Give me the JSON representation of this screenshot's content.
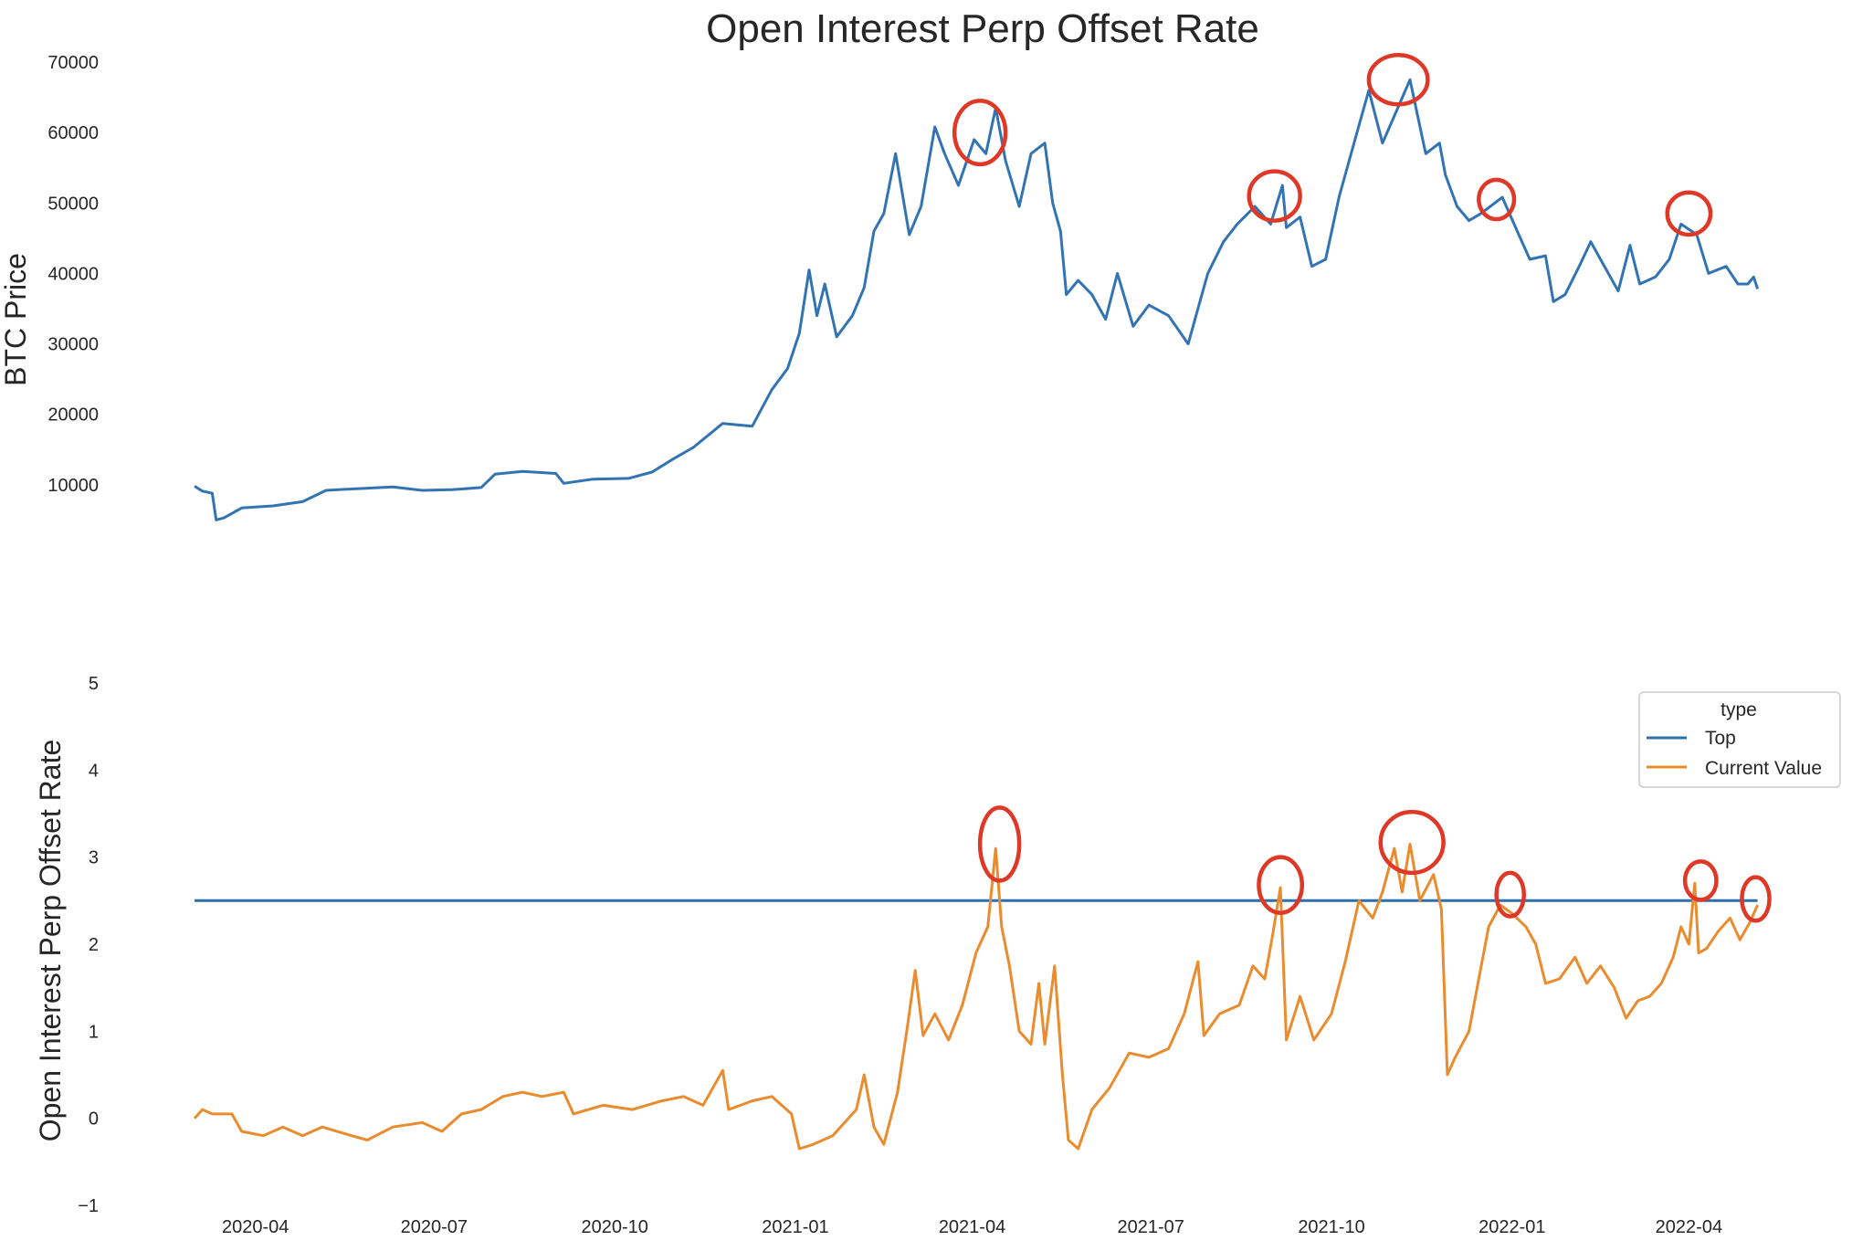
{
  "title": "Open Interest Perp Offset Rate",
  "colors": {
    "price": "#3274b3",
    "top": "#2f6fab",
    "current": "#ea8c2d",
    "highlight": "#e03826"
  },
  "legend": {
    "title": "type",
    "items": [
      "Top",
      "Current Value"
    ],
    "placement": "right"
  },
  "chart_data": [
    {
      "type": "line",
      "ylabel": "BTC  Price",
      "yticks": [
        10000,
        20000,
        30000,
        40000,
        50000,
        60000,
        70000
      ],
      "ylim": [
        0,
        70000
      ],
      "xlim": [
        "2020-03-01",
        "2022-05-15"
      ],
      "series": [
        {
          "color_key": "price",
          "points": [
            [
              "2020-03-01",
              9800
            ],
            [
              "2020-03-05",
              9100
            ],
            [
              "2020-03-10",
              8800
            ],
            [
              "2020-03-12",
              5000
            ],
            [
              "2020-03-16",
              5300
            ],
            [
              "2020-03-25",
              6700
            ],
            [
              "2020-04-10",
              7000
            ],
            [
              "2020-04-25",
              7600
            ],
            [
              "2020-05-07",
              9200
            ],
            [
              "2020-05-20",
              9400
            ],
            [
              "2020-06-10",
              9700
            ],
            [
              "2020-06-25",
              9200
            ],
            [
              "2020-07-10",
              9300
            ],
            [
              "2020-07-25",
              9600
            ],
            [
              "2020-08-01",
              11500
            ],
            [
              "2020-08-15",
              11900
            ],
            [
              "2020-09-01",
              11600
            ],
            [
              "2020-09-05",
              10200
            ],
            [
              "2020-09-20",
              10800
            ],
            [
              "2020-10-08",
              10900
            ],
            [
              "2020-10-20",
              11800
            ],
            [
              "2020-10-31",
              13700
            ],
            [
              "2020-11-10",
              15300
            ],
            [
              "2020-11-25",
              18700
            ],
            [
              "2020-12-10",
              18300
            ],
            [
              "2020-12-20",
              23500
            ],
            [
              "2020-12-28",
              26500
            ],
            [
              "2021-01-03",
              31500
            ],
            [
              "2021-01-08",
              40500
            ],
            [
              "2021-01-12",
              34000
            ],
            [
              "2021-01-16",
              38500
            ],
            [
              "2021-01-22",
              31000
            ],
            [
              "2021-01-30",
              34000
            ],
            [
              "2021-02-05",
              38000
            ],
            [
              "2021-02-10",
              46000
            ],
            [
              "2021-02-15",
              48500
            ],
            [
              "2021-02-21",
              57000
            ],
            [
              "2021-02-28",
              45500
            ],
            [
              "2021-03-06",
              49500
            ],
            [
              "2021-03-13",
              60800
            ],
            [
              "2021-03-18",
              57000
            ],
            [
              "2021-03-25",
              52500
            ],
            [
              "2021-04-02",
              59000
            ],
            [
              "2021-04-08",
              57000
            ],
            [
              "2021-04-13",
              63500
            ],
            [
              "2021-04-18",
              56000
            ],
            [
              "2021-04-25",
              49500
            ],
            [
              "2021-05-01",
              57000
            ],
            [
              "2021-05-08",
              58500
            ],
            [
              "2021-05-12",
              50000
            ],
            [
              "2021-05-16",
              46000
            ],
            [
              "2021-05-19",
              37000
            ],
            [
              "2021-05-25",
              39000
            ],
            [
              "2021-06-01",
              37000
            ],
            [
              "2021-06-08",
              33500
            ],
            [
              "2021-06-14",
              40000
            ],
            [
              "2021-06-22",
              32500
            ],
            [
              "2021-06-30",
              35500
            ],
            [
              "2021-07-10",
              34000
            ],
            [
              "2021-07-20",
              30000
            ],
            [
              "2021-07-25",
              35000
            ],
            [
              "2021-07-30",
              40000
            ],
            [
              "2021-08-07",
              44500
            ],
            [
              "2021-08-14",
              47000
            ],
            [
              "2021-08-23",
              49500
            ],
            [
              "2021-08-31",
              47000
            ],
            [
              "2021-09-06",
              52500
            ],
            [
              "2021-09-08",
              46500
            ],
            [
              "2021-09-15",
              48000
            ],
            [
              "2021-09-21",
              41000
            ],
            [
              "2021-09-28",
              42000
            ],
            [
              "2021-10-05",
              51000
            ],
            [
              "2021-10-15",
              61000
            ],
            [
              "2021-10-20",
              66000
            ],
            [
              "2021-10-27",
              58500
            ],
            [
              "2021-11-03",
              63000
            ],
            [
              "2021-11-10",
              67500
            ],
            [
              "2021-11-18",
              57000
            ],
            [
              "2021-11-25",
              58500
            ],
            [
              "2021-11-28",
              54000
            ],
            [
              "2021-12-04",
              49500
            ],
            [
              "2021-12-10",
              47500
            ],
            [
              "2021-12-16",
              48500
            ],
            [
              "2021-12-27",
              50800
            ],
            [
              "2022-01-02",
              47000
            ],
            [
              "2022-01-10",
              42000
            ],
            [
              "2022-01-18",
              42500
            ],
            [
              "2022-01-22",
              36000
            ],
            [
              "2022-01-28",
              37000
            ],
            [
              "2022-02-05",
              41500
            ],
            [
              "2022-02-10",
              44500
            ],
            [
              "2022-02-15",
              42000
            ],
            [
              "2022-02-24",
              37500
            ],
            [
              "2022-03-02",
              44000
            ],
            [
              "2022-03-07",
              38500
            ],
            [
              "2022-03-15",
              39500
            ],
            [
              "2022-03-22",
              42000
            ],
            [
              "2022-03-28",
              47000
            ],
            [
              "2022-04-05",
              45500
            ],
            [
              "2022-04-11",
              40000
            ],
            [
              "2022-04-20",
              41000
            ],
            [
              "2022-04-26",
              38500
            ],
            [
              "2022-05-01",
              38500
            ],
            [
              "2022-05-04",
              39500
            ],
            [
              "2022-05-06",
              37800
            ]
          ]
        }
      ],
      "highlights": [
        {
          "x": "2021-04-05",
          "y": 60000,
          "rx_days": 13,
          "ry_value": 4500
        },
        {
          "x": "2021-09-02",
          "y": 51000,
          "rx_days": 13,
          "ry_value": 3500
        },
        {
          "x": "2021-11-04",
          "y": 67500,
          "rx_days": 15,
          "ry_value": 3500
        },
        {
          "x": "2021-12-24",
          "y": 50500,
          "rx_days": 9,
          "ry_value": 2800
        },
        {
          "x": "2022-04-01",
          "y": 48500,
          "rx_days": 11,
          "ry_value": 3000
        }
      ]
    },
    {
      "type": "line",
      "ylabel": "Open Interest Perp Offset Rate",
      "yticks": [
        -1,
        0,
        1,
        2,
        3,
        4,
        5
      ],
      "ylim": [
        -1,
        5
      ],
      "xlim": [
        "2020-03-01",
        "2022-05-15"
      ],
      "xticks": [
        "2020-04",
        "2020-07",
        "2020-10",
        "2021-01",
        "2021-04",
        "2021-07",
        "2021-10",
        "2022-01",
        "2022-04"
      ],
      "series": [
        {
          "name": "Top",
          "color_key": "top",
          "points": [
            [
              "2020-03-01",
              2.5
            ],
            [
              "2022-05-06",
              2.5
            ]
          ]
        },
        {
          "name": "Current Value",
          "color_key": "current",
          "points": [
            [
              "2020-03-01",
              0.0
            ],
            [
              "2020-03-05",
              0.1
            ],
            [
              "2020-03-10",
              0.05
            ],
            [
              "2020-03-20",
              0.05
            ],
            [
              "2020-03-25",
              -0.15
            ],
            [
              "2020-04-05",
              -0.2
            ],
            [
              "2020-04-15",
              -0.1
            ],
            [
              "2020-04-25",
              -0.2
            ],
            [
              "2020-05-05",
              -0.1
            ],
            [
              "2020-05-20",
              -0.2
            ],
            [
              "2020-05-28",
              -0.25
            ],
            [
              "2020-06-10",
              -0.1
            ],
            [
              "2020-06-25",
              -0.05
            ],
            [
              "2020-07-05",
              -0.15
            ],
            [
              "2020-07-15",
              0.05
            ],
            [
              "2020-07-25",
              0.1
            ],
            [
              "2020-08-05",
              0.25
            ],
            [
              "2020-08-15",
              0.3
            ],
            [
              "2020-08-25",
              0.25
            ],
            [
              "2020-09-05",
              0.3
            ],
            [
              "2020-09-10",
              0.05
            ],
            [
              "2020-09-25",
              0.15
            ],
            [
              "2020-10-10",
              0.1
            ],
            [
              "2020-10-25",
              0.2
            ],
            [
              "2020-11-05",
              0.25
            ],
            [
              "2020-11-15",
              0.15
            ],
            [
              "2020-11-25",
              0.55
            ],
            [
              "2020-11-28",
              0.1
            ],
            [
              "2020-12-10",
              0.2
            ],
            [
              "2020-12-20",
              0.25
            ],
            [
              "2020-12-30",
              0.05
            ],
            [
              "2021-01-03",
              -0.35
            ],
            [
              "2021-01-10",
              -0.3
            ],
            [
              "2021-01-20",
              -0.2
            ],
            [
              "2021-02-01",
              0.1
            ],
            [
              "2021-02-05",
              0.5
            ],
            [
              "2021-02-10",
              -0.1
            ],
            [
              "2021-02-15",
              -0.3
            ],
            [
              "2021-02-22",
              0.3
            ],
            [
              "2021-02-27",
              1.05
            ],
            [
              "2021-03-03",
              1.7
            ],
            [
              "2021-03-07",
              0.95
            ],
            [
              "2021-03-13",
              1.2
            ],
            [
              "2021-03-20",
              0.9
            ],
            [
              "2021-03-27",
              1.3
            ],
            [
              "2021-04-03",
              1.9
            ],
            [
              "2021-04-09",
              2.2
            ],
            [
              "2021-04-13",
              3.1
            ],
            [
              "2021-04-16",
              2.2
            ],
            [
              "2021-04-20",
              1.75
            ],
            [
              "2021-04-25",
              1.0
            ],
            [
              "2021-05-01",
              0.85
            ],
            [
              "2021-05-05",
              1.55
            ],
            [
              "2021-05-08",
              0.85
            ],
            [
              "2021-05-13",
              1.75
            ],
            [
              "2021-05-17",
              0.5
            ],
            [
              "2021-05-20",
              -0.25
            ],
            [
              "2021-05-25",
              -0.35
            ],
            [
              "2021-06-01",
              0.1
            ],
            [
              "2021-06-10",
              0.35
            ],
            [
              "2021-06-20",
              0.75
            ],
            [
              "2021-06-30",
              0.7
            ],
            [
              "2021-07-10",
              0.8
            ],
            [
              "2021-07-18",
              1.2
            ],
            [
              "2021-07-25",
              1.8
            ],
            [
              "2021-07-28",
              0.95
            ],
            [
              "2021-08-05",
              1.2
            ],
            [
              "2021-08-15",
              1.3
            ],
            [
              "2021-08-22",
              1.75
            ],
            [
              "2021-08-28",
              1.6
            ],
            [
              "2021-09-01",
              2.1
            ],
            [
              "2021-09-05",
              2.65
            ],
            [
              "2021-09-08",
              0.9
            ],
            [
              "2021-09-15",
              1.4
            ],
            [
              "2021-09-22",
              0.9
            ],
            [
              "2021-10-01",
              1.2
            ],
            [
              "2021-10-08",
              1.8
            ],
            [
              "2021-10-15",
              2.5
            ],
            [
              "2021-10-22",
              2.3
            ],
            [
              "2021-10-27",
              2.6
            ],
            [
              "2021-11-02",
              3.1
            ],
            [
              "2021-11-06",
              2.6
            ],
            [
              "2021-11-10",
              3.15
            ],
            [
              "2021-11-15",
              2.5
            ],
            [
              "2021-11-22",
              2.8
            ],
            [
              "2021-11-26",
              2.4
            ],
            [
              "2021-11-29",
              0.5
            ],
            [
              "2021-12-03",
              0.7
            ],
            [
              "2021-12-10",
              1.0
            ],
            [
              "2021-12-15",
              1.6
            ],
            [
              "2021-12-20",
              2.2
            ],
            [
              "2021-12-26",
              2.45
            ],
            [
              "2022-01-01",
              2.35
            ],
            [
              "2022-01-08",
              2.2
            ],
            [
              "2022-01-13",
              2.0
            ],
            [
              "2022-01-18",
              1.55
            ],
            [
              "2022-01-25",
              1.6
            ],
            [
              "2022-02-02",
              1.85
            ],
            [
              "2022-02-08",
              1.55
            ],
            [
              "2022-02-15",
              1.75
            ],
            [
              "2022-02-22",
              1.5
            ],
            [
              "2022-02-28",
              1.15
            ],
            [
              "2022-03-06",
              1.35
            ],
            [
              "2022-03-12",
              1.4
            ],
            [
              "2022-03-18",
              1.55
            ],
            [
              "2022-03-24",
              1.85
            ],
            [
              "2022-03-28",
              2.2
            ],
            [
              "2022-04-01",
              2.0
            ],
            [
              "2022-04-04",
              2.7
            ],
            [
              "2022-04-06",
              1.9
            ],
            [
              "2022-04-10",
              1.95
            ],
            [
              "2022-04-16",
              2.15
            ],
            [
              "2022-04-22",
              2.3
            ],
            [
              "2022-04-27",
              2.05
            ],
            [
              "2022-05-02",
              2.25
            ],
            [
              "2022-05-06",
              2.45
            ]
          ]
        }
      ],
      "highlights": [
        {
          "x": "2021-04-15",
          "y": 3.15,
          "rx_days": 10,
          "ry_value": 0.42
        },
        {
          "x": "2021-09-05",
          "y": 2.68,
          "rx_days": 11,
          "ry_value": 0.32
        },
        {
          "x": "2021-11-11",
          "y": 3.17,
          "rx_days": 16,
          "ry_value": 0.35
        },
        {
          "x": "2021-12-31",
          "y": 2.57,
          "rx_days": 7,
          "ry_value": 0.25
        },
        {
          "x": "2022-04-07",
          "y": 2.73,
          "rx_days": 8,
          "ry_value": 0.22
        },
        {
          "x": "2022-05-05",
          "y": 2.52,
          "rx_days": 7,
          "ry_value": 0.25
        }
      ]
    }
  ]
}
